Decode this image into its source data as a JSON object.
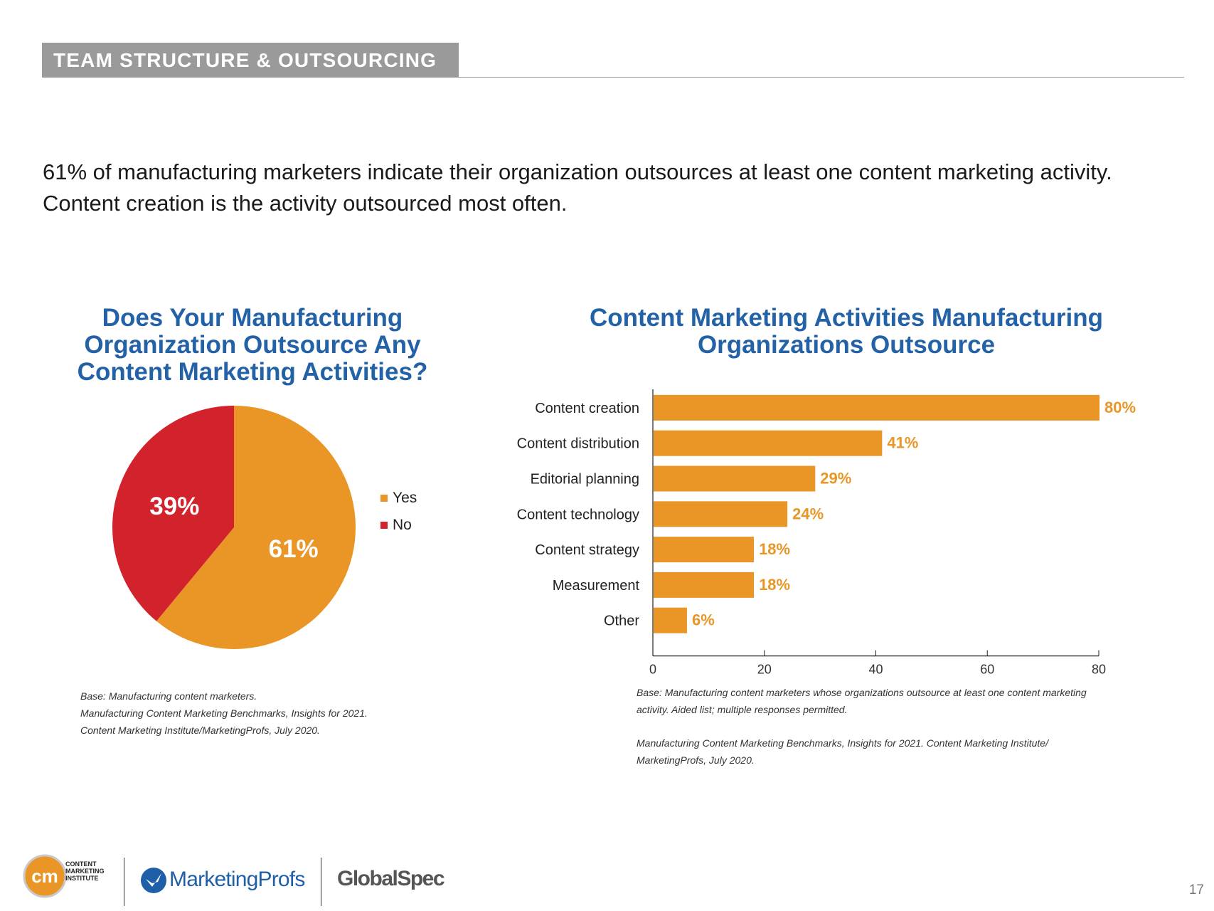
{
  "header": {
    "section_title": "TEAM STRUCTURE & OUTSOURCING"
  },
  "lead_text": {
    "line1": "61% of manufacturing marketers indicate their organization outsources at least one content marketing activity.",
    "line2": "Content creation is the activity outsourced most often."
  },
  "pie_title": [
    "Does Your Manufacturing",
    "Organization Outsource Any",
    "Content Marketing Activities?"
  ],
  "bar_title": [
    "Content Marketing Activities Manufacturing",
    "Organizations Outsource"
  ],
  "chart_data": [
    {
      "type": "pie",
      "title": "Does Your Manufacturing Organization Outsource Any Content Marketing Activities?",
      "categories": [
        "Yes",
        "No"
      ],
      "values": [
        61,
        39
      ],
      "labels": [
        "61%",
        "39%"
      ],
      "colors": [
        "#e99627",
        "#d2232d"
      ],
      "legend_position": "right"
    },
    {
      "type": "bar",
      "orientation": "horizontal",
      "title": "Content Marketing Activities Manufacturing Organizations Outsource",
      "categories": [
        "Content creation",
        "Content distribution",
        "Editorial planning",
        "Content technology",
        "Content strategy",
        "Measurement",
        "Other"
      ],
      "values": [
        80,
        41,
        29,
        24,
        18,
        18,
        6
      ],
      "labels": [
        "80%",
        "41%",
        "29%",
        "24%",
        "18%",
        "18%",
        "6%"
      ],
      "color": "#e99627",
      "xlim": [
        0,
        80
      ],
      "xticks": [
        "0",
        "20",
        "40",
        "60",
        "80"
      ],
      "xlabel": "",
      "ylabel": ""
    }
  ],
  "notes": {
    "pie": [
      "Base: Manufacturing content marketers.",
      "Manufacturing Content Marketing Benchmarks, Insights for 2021.",
      "Content Marketing Institute/MarketingProfs, July 2020."
    ],
    "bar": [
      "Base: Manufacturing content marketers whose organizations outsource at least one content marketing",
      "activity. Aided list; multiple responses permitted.",
      "Manufacturing Content Marketing Benchmarks, Insights for 2021. Content Marketing Institute/",
      "MarketingProfs, July 2020."
    ]
  },
  "footer": {
    "cmi_initials": "cm",
    "cmi_text": [
      "CONTENT",
      "MARKETING",
      "INSTITUTE"
    ],
    "marketingprofs": "MarketingProfs",
    "globalspec": "GlobalSpec",
    "page_number": "17"
  },
  "colors": {
    "accent_orange": "#e99627",
    "accent_red": "#d2232d",
    "title_blue": "#2462a8",
    "header_gray": "#9a9a9a"
  }
}
